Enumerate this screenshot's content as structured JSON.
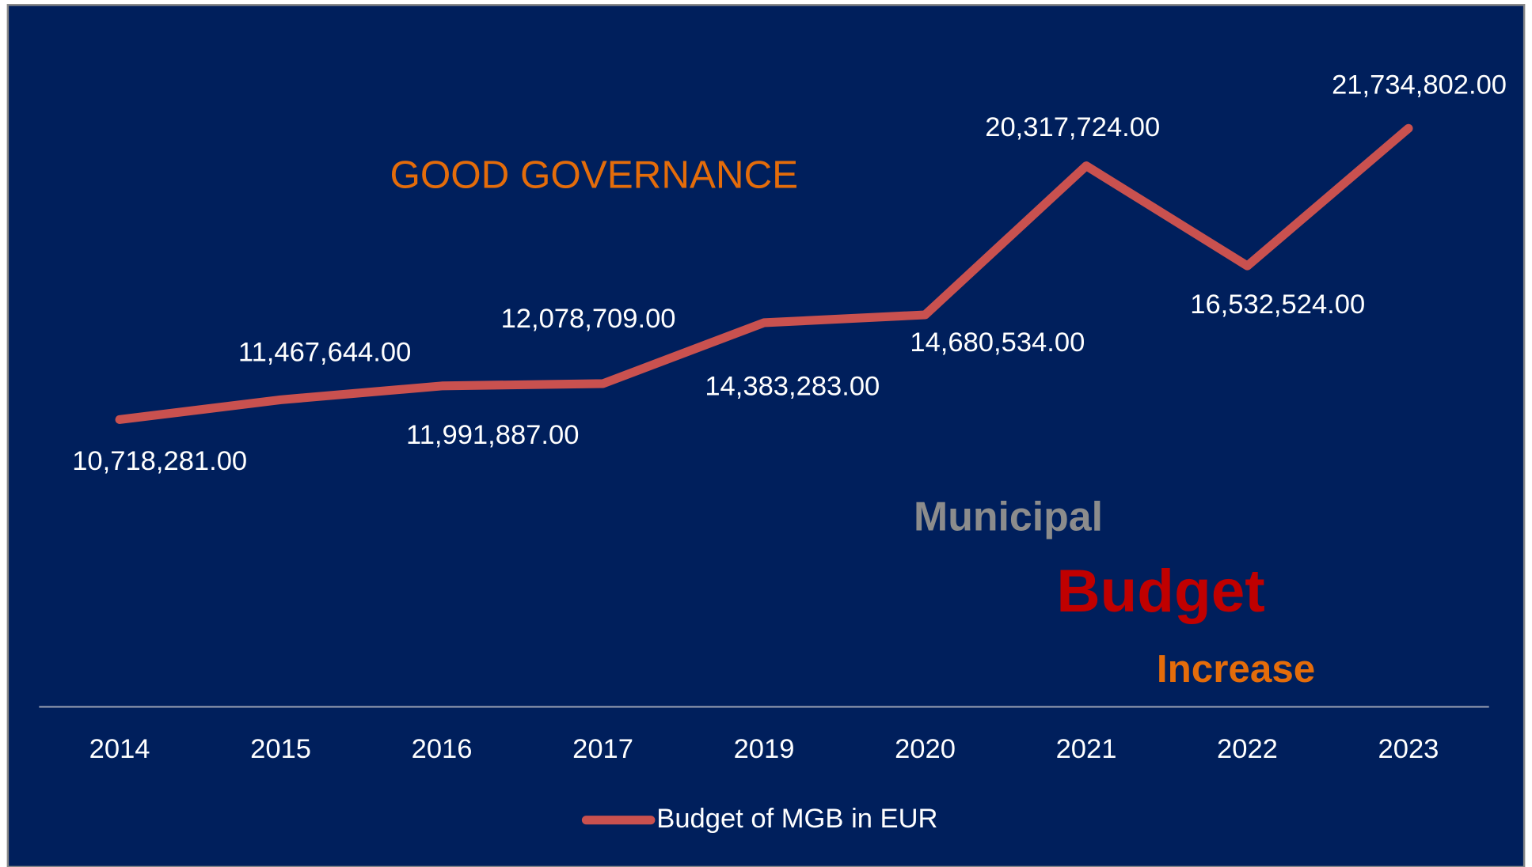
{
  "chart_data": {
    "type": "line",
    "annotations": [
      "GOOD GOVERNANCE",
      "Municipal",
      "Budget",
      "Increase"
    ],
    "categories": [
      "2014",
      "2015",
      "2016",
      "2017",
      "2019",
      "2020",
      "2021",
      "2022",
      "2023"
    ],
    "series": [
      {
        "name": "Budget of MGB in EUR",
        "color": "#c9514f",
        "values": [
          10718281,
          11467644,
          11991887,
          12078709,
          14383283,
          14680534,
          20317724,
          16532524,
          21734802
        ],
        "value_labels": [
          "10,718,281.00",
          "11,467,644.00",
          "11,991,887.00",
          "12,078,709.00",
          "14,383,283.00",
          "14,680,534.00",
          "20,317,724.00",
          "16,532,524.00",
          "21,734,802.00"
        ]
      }
    ],
    "ylim": [
      0,
      25000000
    ]
  }
}
